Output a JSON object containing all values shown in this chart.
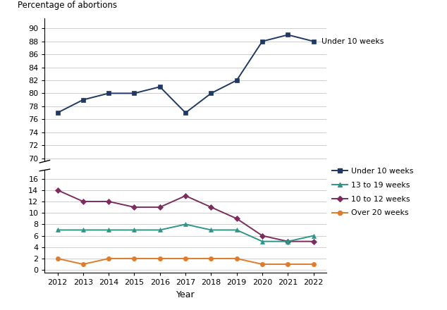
{
  "years": [
    2012,
    2013,
    2014,
    2015,
    2016,
    2017,
    2018,
    2019,
    2020,
    2021,
    2022
  ],
  "under_10": [
    77.0,
    79.0,
    80.0,
    80.0,
    81.0,
    77.0,
    80.0,
    82.0,
    88.0,
    89.0,
    88.0
  ],
  "weeks_10_12": [
    14.0,
    12.0,
    12.0,
    11.0,
    11.0,
    13.0,
    11.0,
    9.0,
    6.0,
    5.0,
    5.0
  ],
  "weeks_13_19": [
    7.0,
    7.0,
    7.0,
    7.0,
    7.0,
    8.0,
    7.0,
    7.0,
    5.0,
    5.0,
    6.0
  ],
  "over_20": [
    2.0,
    1.0,
    2.0,
    2.0,
    2.0,
    2.0,
    2.0,
    2.0,
    1.0,
    1.0,
    1.0
  ],
  "color_under_10": "#1f3864",
  "color_10_12": "#7b2d5e",
  "color_13_19": "#2e9688",
  "color_over_20": "#e07b2a",
  "ylabel": "Percentage of abortions",
  "xlabel": "Year",
  "upper_yticks": [
    70,
    72,
    74,
    76,
    78,
    80,
    82,
    84,
    86,
    88,
    90
  ],
  "lower_yticks": [
    0,
    2,
    4,
    6,
    8,
    10,
    12,
    14,
    16
  ],
  "upper_ylim": [
    69.5,
    91.5
  ],
  "lower_ylim": [
    -0.5,
    17.5
  ],
  "background_color": "#ffffff",
  "grid_color": "#c8c8c8"
}
